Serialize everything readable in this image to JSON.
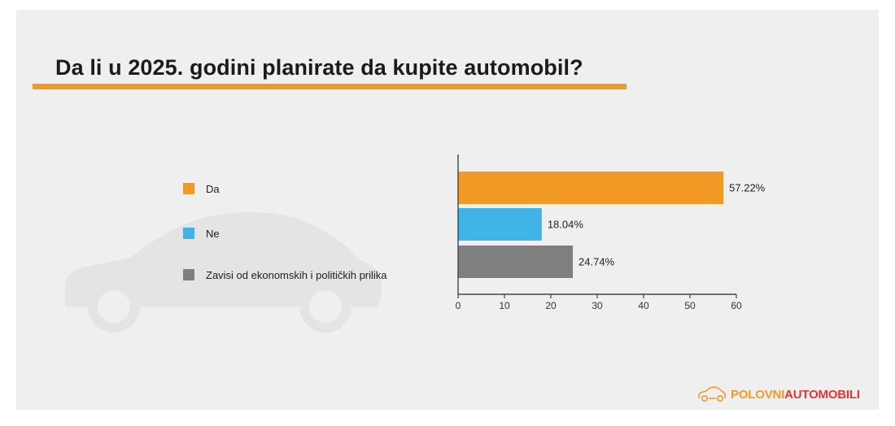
{
  "title": "Da li u 2025. godini planirate da kupite automobil?",
  "colors": {
    "accent": "#f29a26",
    "da": "#f29a26",
    "ne": "#40b4e6",
    "zavisi": "#7f7f7f",
    "axis": "#444444",
    "background": "#efefef"
  },
  "logo": {
    "part1": "POLOVNI",
    "part2": "AUTOMOBILI",
    "icon": "car-outline-icon"
  },
  "chart_data": {
    "type": "bar",
    "orientation": "horizontal",
    "categories": [
      "Da",
      "Ne",
      "Zavisi od ekonomskih i političkih prilika"
    ],
    "values": [
      57.22,
      18.04,
      24.74
    ],
    "value_labels": [
      "57.22%",
      "18.04%",
      "24.74%"
    ],
    "colors": [
      "#f29a26",
      "#40b4e6",
      "#7f7f7f"
    ],
    "x_ticks": [
      "0",
      "10",
      "20",
      "30",
      "40",
      "50",
      "60"
    ],
    "xlim": [
      0,
      60
    ],
    "grid": false,
    "legend_placement": "left"
  }
}
